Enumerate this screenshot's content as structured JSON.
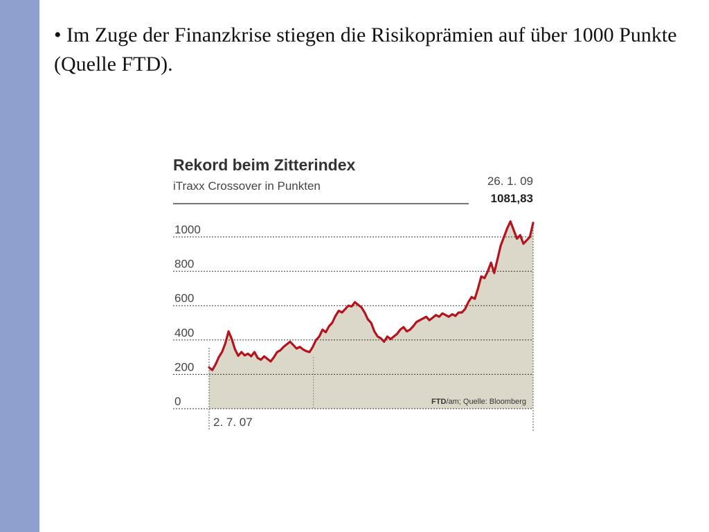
{
  "slide": {
    "bullet_text": "• Im Zuge der Finanzkrise stiegen die Risikoprämien auf über 1000 Punkte (Quelle FTD).",
    "sidebar_color": "#8fa0cf"
  },
  "chart_data": {
    "type": "area",
    "title": "Rekord beim Zitterindex",
    "subtitle": "iTraxx Crossover in Punkten",
    "x_start_label": "2. 7. 07",
    "last_date_label": "26. 1. 09",
    "last_value_label": "1081,83",
    "source_bold": "FTD",
    "source_rest": "/am; Quelle: Bloomberg",
    "y_ticks": [
      "1000",
      "800",
      "600",
      "400",
      "200",
      "0"
    ],
    "ylim": [
      0,
      1100
    ],
    "grid": true,
    "line_color": "#b5121b",
    "fill_color": "#dcd8c9",
    "series": [
      {
        "values": [
          240,
          225,
          258,
          300,
          330,
          380,
          450,
          405,
          345,
          308,
          330,
          310,
          320,
          305,
          330,
          295,
          285,
          305,
          290,
          275,
          300,
          330,
          340,
          360,
          375,
          390,
          370,
          350,
          360,
          345,
          335,
          330,
          360,
          400,
          420,
          460,
          445,
          480,
          500,
          540,
          570,
          560,
          580,
          600,
          595,
          620,
          605,
          590,
          560,
          520,
          500,
          450,
          420,
          410,
          390,
          420,
          405,
          420,
          435,
          460,
          475,
          450,
          460,
          480,
          505,
          515,
          525,
          535,
          515,
          530,
          545,
          535,
          555,
          545,
          535,
          550,
          540,
          560,
          560,
          580,
          620,
          650,
          640,
          700,
          770,
          760,
          800,
          850,
          790,
          870,
          950,
          1000,
          1050,
          1090,
          1040,
          990,
          1010,
          960,
          980,
          1000,
          1082
        ]
      }
    ]
  }
}
